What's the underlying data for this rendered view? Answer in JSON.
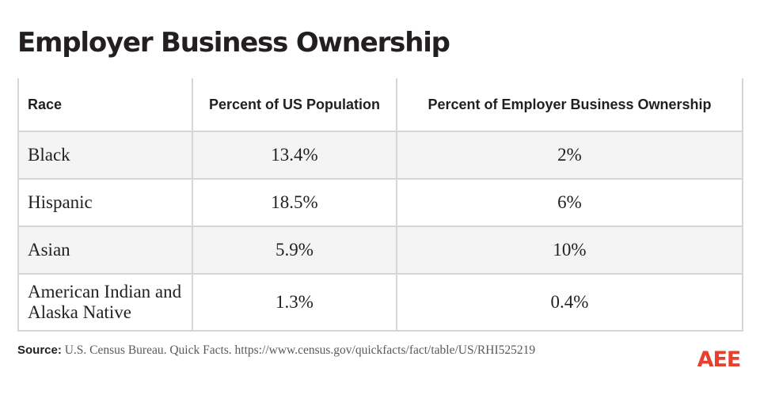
{
  "title": "Employer Business Ownership",
  "chart_data": {
    "type": "table",
    "title": "Employer Business Ownership",
    "columns": [
      "Race",
      "Percent of US Population",
      "Percent of Employer Business Ownership"
    ],
    "rows": [
      {
        "race": "Black",
        "population": "13.4%",
        "ownership": "2%"
      },
      {
        "race": "Hispanic",
        "population": "18.5%",
        "ownership": "6%"
      },
      {
        "race": "Asian",
        "population": "5.9%",
        "ownership": "10%"
      },
      {
        "race": "American Indian and Alaska Native",
        "population": "1.3%",
        "ownership": "0.4%"
      }
    ]
  },
  "source": {
    "label": "Source:",
    "text": "U.S. Census Bureau. Quick Facts. https://www.census.gov/quickfacts/fact/table/US/RHI525219"
  },
  "logo": {
    "text": "AEE",
    "color": "#e8402d"
  },
  "colors": {
    "text": "#231f20",
    "row_alt": "#f4f4f4",
    "border": "#d6d6d6"
  }
}
